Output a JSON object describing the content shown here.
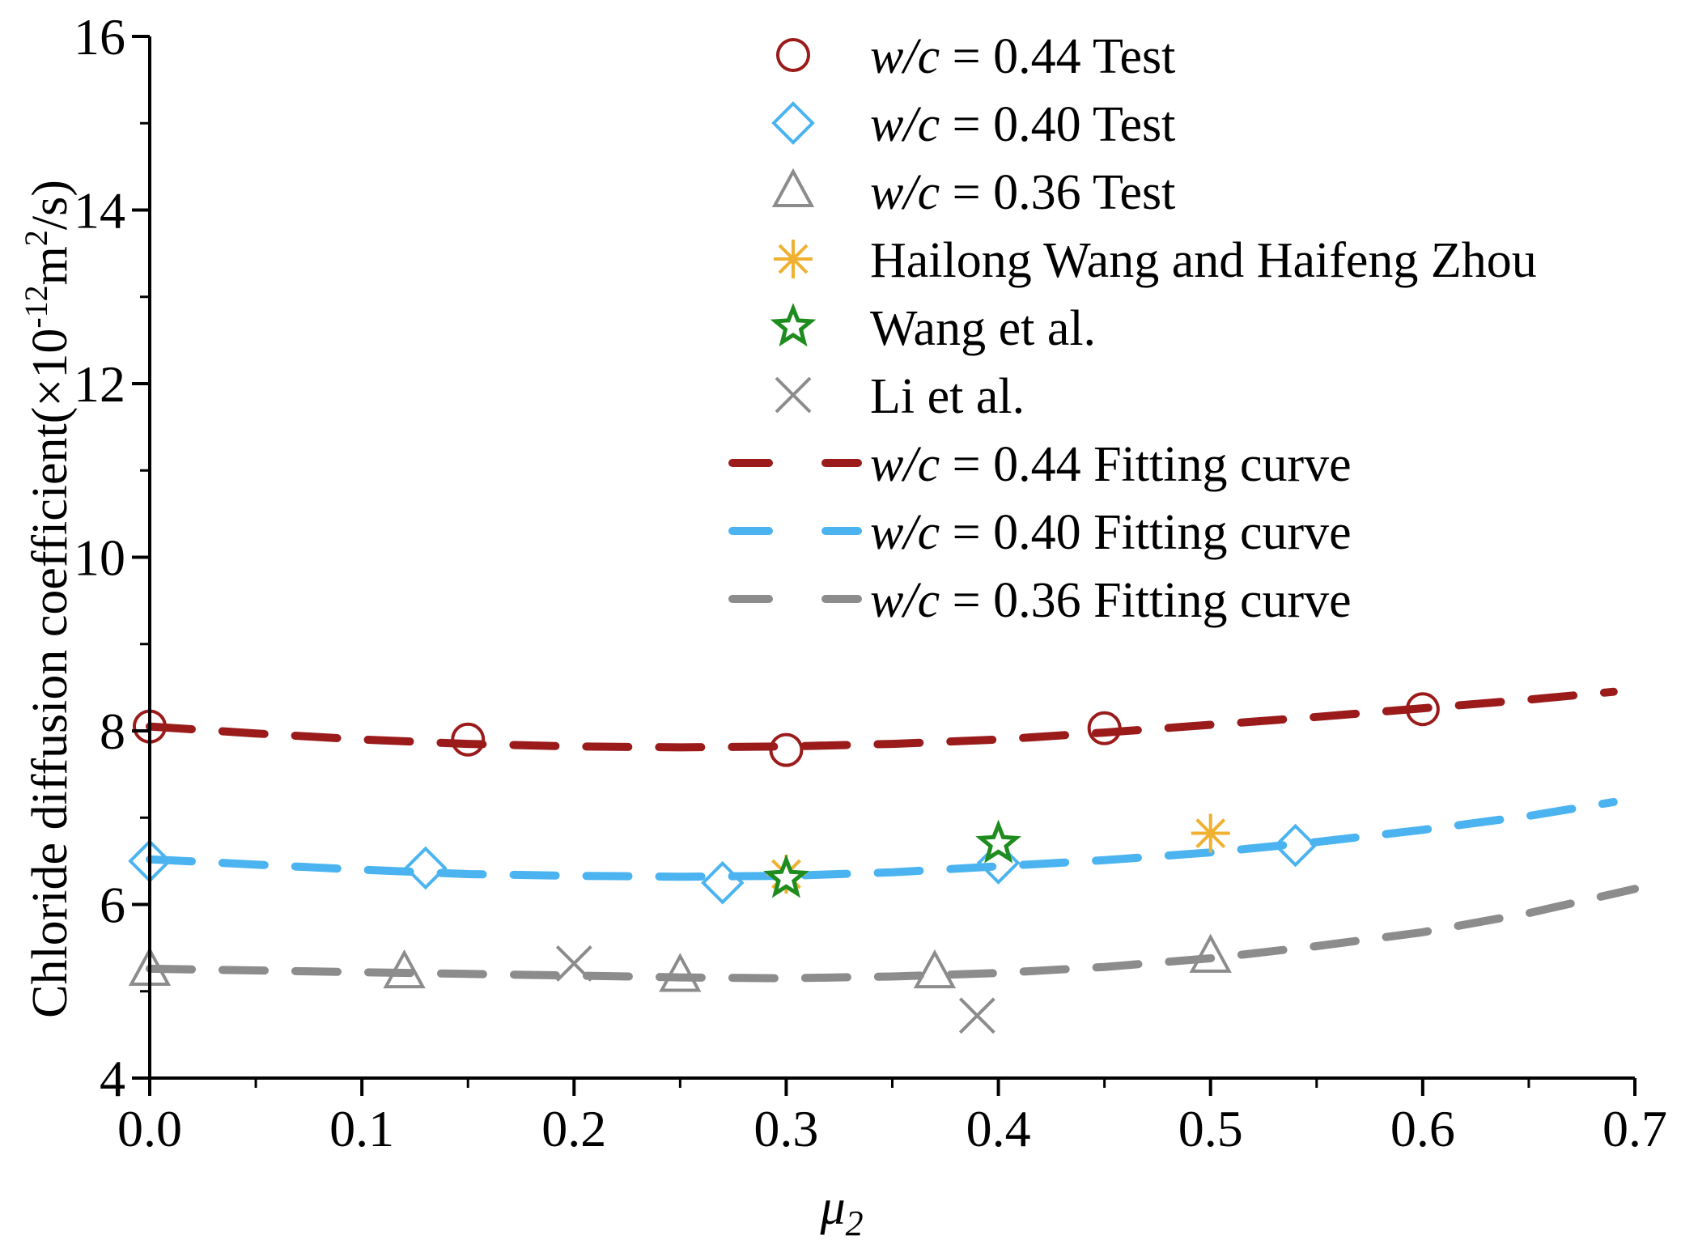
{
  "chart_data": {
    "type": "scatter",
    "title": "",
    "xlabel": "μ",
    "xlabel_sub": "2",
    "ylabel": {
      "main": "Chloride diffusion coefficient(×10",
      "exp1": "-12",
      "mid": "m",
      "exp2": "2",
      "end": "/s)"
    },
    "xlim": [
      0.0,
      0.7
    ],
    "ylim": [
      4,
      16
    ],
    "x_ticks": [
      0.0,
      0.1,
      0.2,
      0.3,
      0.4,
      0.5,
      0.6,
      0.7
    ],
    "x_tick_labels": [
      "0.0",
      "0.1",
      "0.2",
      "0.3",
      "0.4",
      "0.5",
      "0.6",
      "0.7"
    ],
    "x_minor_ticks": [
      0.05,
      0.15,
      0.25,
      0.35,
      0.45,
      0.55,
      0.65
    ],
    "y_ticks": [
      4,
      6,
      8,
      10,
      12,
      14,
      16
    ],
    "y_tick_labels": [
      "4",
      "6",
      "8",
      "10",
      "12",
      "14",
      "16"
    ],
    "y_minor_ticks": [
      5,
      7,
      9,
      11,
      13,
      15
    ],
    "grid": false,
    "legend_position": "top-right",
    "series": [
      {
        "name": "w/c = 0.44 Test",
        "label_italic": "w/c",
        "label_rest": " = 0.44 Test",
        "marker": "circle",
        "color": "#9B1B1B",
        "points": [
          [
            0.0,
            8.05
          ],
          [
            0.15,
            7.9
          ],
          [
            0.3,
            7.78
          ],
          [
            0.45,
            8.03
          ],
          [
            0.6,
            8.25
          ]
        ]
      },
      {
        "name": "w/c = 0.40 Test",
        "label_italic": "w/c",
        "label_rest": " = 0.40 Test",
        "marker": "diamond",
        "color": "#4BB4F0",
        "points": [
          [
            0.0,
            6.5
          ],
          [
            0.13,
            6.42
          ],
          [
            0.27,
            6.25
          ],
          [
            0.4,
            6.48
          ],
          [
            0.54,
            6.68
          ]
        ]
      },
      {
        "name": "w/c = 0.36 Test",
        "label_italic": "w/c",
        "label_rest": " = 0.36 Test",
        "marker": "triangle",
        "color": "#8C8C8C",
        "points": [
          [
            0.0,
            5.25
          ],
          [
            0.12,
            5.22
          ],
          [
            0.25,
            5.18
          ],
          [
            0.37,
            5.22
          ],
          [
            0.5,
            5.4
          ]
        ]
      },
      {
        "name": "Hailong Wang and Haifeng Zhou",
        "label_italic": "",
        "label_rest": "Hailong Wang and Haifeng Zhou",
        "marker": "asterisk",
        "color": "#F0B030",
        "points": [
          [
            0.3,
            6.35
          ],
          [
            0.5,
            6.82
          ]
        ]
      },
      {
        "name": "Wang et al.",
        "label_italic": "",
        "label_rest": "Wang et al.",
        "marker": "star",
        "color": "#1E8C1E",
        "points": [
          [
            0.3,
            6.3
          ],
          [
            0.4,
            6.7
          ]
        ]
      },
      {
        "name": "Li et al.",
        "label_italic": "",
        "label_rest": "Li et al.",
        "marker": "x",
        "color": "#8C8C8C",
        "points": [
          [
            0.2,
            5.32
          ],
          [
            0.39,
            4.72
          ]
        ]
      }
    ],
    "fits": [
      {
        "name": "w/c = 0.44 Fitting curve",
        "label_italic": "w/c",
        "label_rest": " = 0.44 Fitting curve",
        "color": "#9B1B1B",
        "x": [
          0.0,
          0.05,
          0.1,
          0.15,
          0.2,
          0.25,
          0.3,
          0.35,
          0.4,
          0.45,
          0.5,
          0.55,
          0.6,
          0.65,
          0.69
        ],
        "y": [
          8.05,
          7.97,
          7.9,
          7.85,
          7.82,
          7.81,
          7.82,
          7.85,
          7.9,
          7.98,
          8.07,
          8.16,
          8.26,
          8.36,
          8.45
        ]
      },
      {
        "name": "w/c = 0.40 Fitting curve",
        "label_italic": "w/c",
        "label_rest": " = 0.40 Fitting curve",
        "color": "#4BB4F0",
        "x": [
          0.0,
          0.05,
          0.1,
          0.15,
          0.2,
          0.25,
          0.3,
          0.35,
          0.4,
          0.45,
          0.5,
          0.55,
          0.6,
          0.65,
          0.69
        ],
        "y": [
          6.52,
          6.46,
          6.4,
          6.35,
          6.33,
          6.32,
          6.33,
          6.37,
          6.44,
          6.51,
          6.6,
          6.72,
          6.86,
          7.02,
          7.18
        ]
      },
      {
        "name": "w/c = 0.36 Fitting curve",
        "label_italic": "w/c",
        "label_rest": " = 0.36 Fitting curve",
        "color": "#8C8C8C",
        "x": [
          0.0,
          0.05,
          0.1,
          0.15,
          0.2,
          0.25,
          0.3,
          0.35,
          0.4,
          0.45,
          0.5,
          0.55,
          0.6,
          0.65,
          0.7
        ],
        "y": [
          5.26,
          5.24,
          5.22,
          5.2,
          5.18,
          5.16,
          5.15,
          5.17,
          5.21,
          5.28,
          5.38,
          5.52,
          5.68,
          5.9,
          6.18
        ]
      }
    ]
  }
}
